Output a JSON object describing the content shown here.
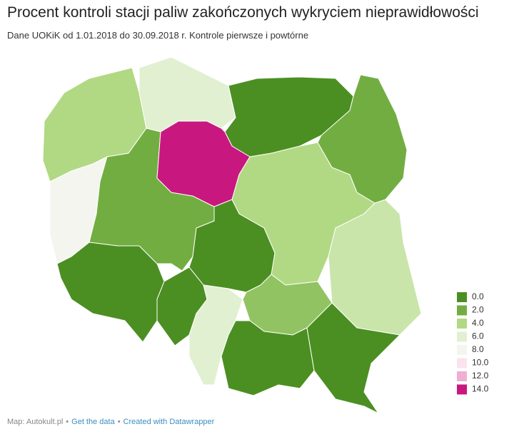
{
  "chart_data": {
    "type": "choropleth",
    "title": "Procent kontroli stacji paliw zakończonych wykryciem nieprawidłowości",
    "subtitle": "Dane UOKiK od 1.01.2018 do 30.09.2018 r. Kontrole pierwsze i powtórne",
    "values": [
      4,
      6,
      0,
      2,
      8,
      2,
      14,
      4,
      5,
      0,
      0,
      0,
      6,
      3,
      0,
      0
    ],
    "legend": [
      {
        "value": 0,
        "label": "0.0",
        "color": "#4b8f22"
      },
      {
        "value": 2,
        "label": "2.0",
        "color": "#72ad42"
      },
      {
        "value": 4,
        "label": "4.0",
        "color": "#b1d983"
      },
      {
        "value": 6,
        "label": "6.0",
        "color": "#e1f0d0"
      },
      {
        "value": 8,
        "label": "8.0",
        "color": "#f4f5ee"
      },
      {
        "value": 10,
        "label": "10.0",
        "color": "#fbe2ee"
      },
      {
        "value": 12,
        "label": "12.0",
        "color": "#efaed2"
      },
      {
        "value": 14,
        "label": "14.0",
        "color": "#c8187f"
      }
    ]
  },
  "footer": {
    "source": "Map: Autokult.pl",
    "separator": "•",
    "links": [
      "Get the data",
      "Created with Datawrapper"
    ]
  }
}
